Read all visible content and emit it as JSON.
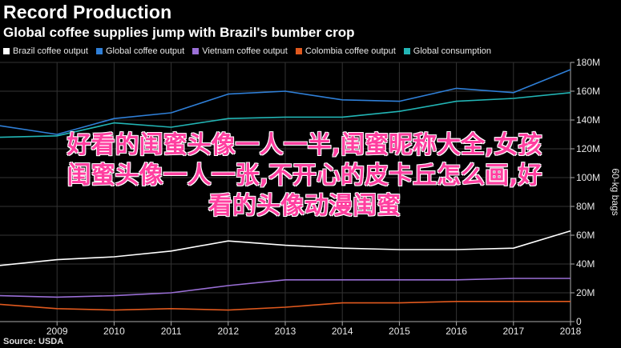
{
  "header": {
    "title": "Record Production",
    "subtitle": "Global coffee supplies jump with Brazil's bumber crop"
  },
  "source": "Source: USDA",
  "overlay_lines": [
    "好看的闺蜜头像一人一半,闺蜜昵称大全,女孩",
    "闺蜜头像一人一张,不开心的皮卡丘怎么画,好",
    "看的头像动漫闺蜜"
  ],
  "colors": {
    "background": "#000000",
    "grid": "#333333",
    "axis": "#aaaaaa",
    "overlay_text": "#ff3fa0"
  },
  "chart_data": {
    "type": "line",
    "x": [
      2008,
      2009,
      2010,
      2011,
      2012,
      2013,
      2014,
      2015,
      2016,
      2017,
      2018
    ],
    "x_ticks": [
      "2009",
      "2010",
      "2011",
      "2012",
      "2013",
      "2014",
      "2015",
      "2016",
      "2017",
      "2018"
    ],
    "xlim": [
      2008,
      2018
    ],
    "ylim": [
      0,
      180
    ],
    "y_ticks": [
      0,
      20,
      40,
      60,
      80,
      100,
      120,
      140,
      160,
      180
    ],
    "y_tick_labels": [
      "0",
      "20M",
      "40M",
      "60M",
      "80M",
      "100M",
      "120M",
      "140M",
      "160M",
      "180M"
    ],
    "ylabel": "60-kg bags",
    "y_axis_side": "right",
    "legend_position": "top",
    "grid": true,
    "series": [
      {
        "name": "Brazil coffee output",
        "color": "#ffffff",
        "values": [
          39,
          43,
          45,
          49,
          56,
          53,
          51,
          50,
          50,
          51,
          63
        ]
      },
      {
        "name": "Global coffee output",
        "color": "#2f7fd7",
        "values": [
          136,
          130,
          141,
          145,
          158,
          160,
          154,
          153,
          162,
          159,
          175
        ]
      },
      {
        "name": "Vietnam coffee output",
        "color": "#9a6fd6",
        "values": [
          18,
          17,
          18,
          20,
          25,
          29,
          29,
          29,
          29,
          30,
          30
        ]
      },
      {
        "name": "Colombia coffee output",
        "color": "#e0591e",
        "values": [
          12,
          9,
          8,
          9,
          8,
          10,
          13,
          13,
          14,
          14,
          14
        ]
      },
      {
        "name": "Global consumption",
        "color": "#22b5b5",
        "values": [
          128,
          129,
          138,
          135,
          141,
          142,
          142,
          146,
          153,
          155,
          159
        ]
      }
    ]
  }
}
